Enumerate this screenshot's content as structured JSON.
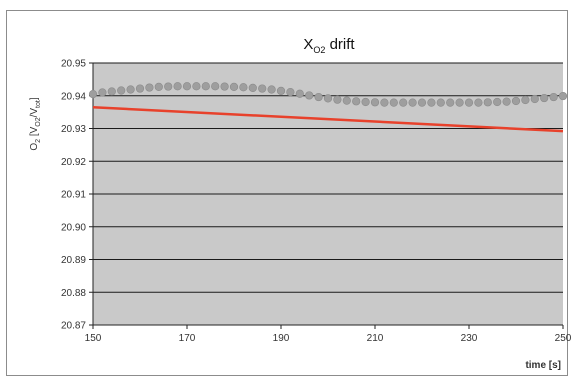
{
  "chart_data": {
    "type": "line",
    "title": "X",
    "title_sub": "O2",
    "title_suffix": " drift",
    "ylabel_base": "O",
    "ylabel_base_sub": "2",
    "ylabel_units": " [V",
    "ylabel_units_sub1": "O2",
    "ylabel_units_mid": "/V",
    "ylabel_units_sub2": "tot",
    "ylabel_units_end": "]",
    "xlabel": "time [s]",
    "xlim": [
      150,
      250
    ],
    "ylim": [
      20.87,
      20.95
    ],
    "xticks": [
      "150",
      "170",
      "190",
      "210",
      "230",
      "250"
    ],
    "yticks": [
      "20.87",
      "20.88",
      "20.89",
      "20.90",
      "20.91",
      "20.92",
      "20.93",
      "20.94",
      "20.95"
    ],
    "grid": true,
    "plot_background": "#c9c9c9",
    "series": [
      {
        "marker": "circle",
        "color": "#9e9e9e",
        "x": [
          150,
          152,
          154,
          156,
          158,
          160,
          162,
          164,
          166,
          168,
          170,
          172,
          174,
          176,
          178,
          180,
          182,
          184,
          186,
          188,
          190,
          192,
          194,
          196,
          198,
          200,
          202,
          204,
          206,
          208,
          210,
          212,
          214,
          216,
          218,
          220,
          222,
          224,
          226,
          228,
          230,
          232,
          234,
          236,
          238,
          240,
          242,
          244,
          246,
          248,
          250
        ],
        "y": [
          20.9405,
          20.941,
          20.9413,
          20.9416,
          20.9419,
          20.9422,
          20.9425,
          20.9427,
          20.9428,
          20.9429,
          20.9429,
          20.9429,
          20.9429,
          20.9429,
          20.9428,
          20.9427,
          20.9426,
          20.9424,
          20.9422,
          20.9419,
          20.9415,
          20.9411,
          20.9406,
          20.9401,
          20.9396,
          20.9392,
          20.9388,
          20.9385,
          20.9383,
          20.9381,
          20.938,
          20.9379,
          20.9379,
          20.9379,
          20.9379,
          20.9379,
          20.9379,
          20.9379,
          20.9379,
          20.9379,
          20.9379,
          20.9379,
          20.938,
          20.9381,
          20.9382,
          20.9384,
          20.9387,
          20.939,
          20.9393,
          20.9396,
          20.9399
        ]
      },
      {
        "marker": "none",
        "color": "#e8412b",
        "x": [
          150,
          250
        ],
        "y": [
          20.9365,
          20.9292
        ]
      }
    ]
  }
}
